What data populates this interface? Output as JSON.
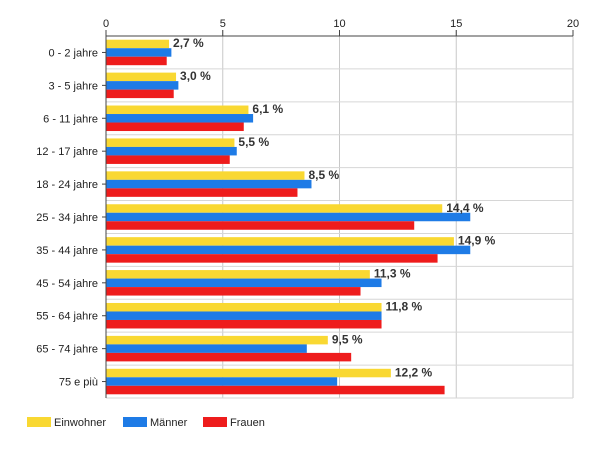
{
  "chart_data": {
    "type": "bar",
    "orientation": "horizontal",
    "categories": [
      "0 - 2 jahre",
      "3 - 5 jahre",
      "6 - 11 jahre",
      "12 - 17 jahre",
      "18 - 24 jahre",
      "25 - 34 jahre",
      "35 - 44 jahre",
      "45 - 54 jahre",
      "55 - 64 jahre",
      "65 - 74 jahre",
      "75 e più"
    ],
    "series": [
      {
        "name": "Einwohner",
        "color": "#f9d832",
        "values": [
          2.7,
          3.0,
          6.1,
          5.5,
          8.5,
          14.4,
          14.9,
          11.3,
          11.8,
          9.5,
          12.2
        ]
      },
      {
        "name": "Männer",
        "color": "#1e7be6",
        "values": [
          2.8,
          3.1,
          6.3,
          5.6,
          8.8,
          15.6,
          15.6,
          11.8,
          11.8,
          8.6,
          9.9
        ]
      },
      {
        "name": "Frauen",
        "color": "#ee1c1c",
        "values": [
          2.6,
          2.9,
          5.9,
          5.3,
          8.2,
          13.2,
          14.2,
          10.9,
          11.8,
          10.5,
          14.5
        ]
      }
    ],
    "data_labels": [
      "2,7 %",
      "3,0 %",
      "6,1 %",
      "5,5 %",
      "8,5 %",
      "14,4 %",
      "14,9 %",
      "11,3 %",
      "11,8 %",
      "9,5 %",
      "12,2 %"
    ],
    "x_ticks": [
      "0",
      "5",
      "10",
      "15",
      "20"
    ],
    "xlim": [
      0,
      20
    ],
    "x_axis_position": "top",
    "grid": true,
    "legend": "bottom-left"
  }
}
